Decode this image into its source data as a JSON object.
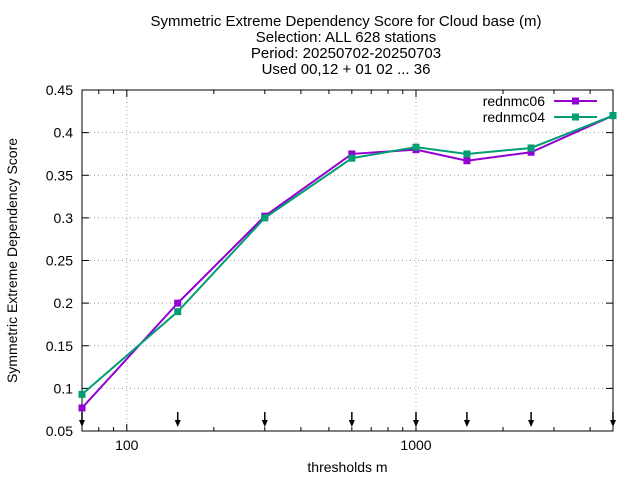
{
  "chart_data": {
    "type": "line",
    "title_lines": [
      "Symmetric Extreme Dependency Score  for Cloud base (m)",
      "Selection: ALL    628 stations",
      "Period: 20250702-20250703",
      "Used 00,12 + 01 02 ... 36"
    ],
    "xlabel": "thresholds m",
    "ylabel": "Symmetric Extreme Dependency Score",
    "x_scale": "log",
    "xlim": [
      70,
      4800
    ],
    "ylim": [
      0.05,
      0.45
    ],
    "x_ticks": [
      100,
      1000
    ],
    "x_tick_labels": [
      "100",
      "1000"
    ],
    "y_ticks": [
      0.05,
      0.1,
      0.15,
      0.2,
      0.25,
      0.3,
      0.35,
      0.4,
      0.45
    ],
    "y_tick_labels": [
      "0.05",
      "0.1",
      "0.15",
      "0.2",
      "0.25",
      "0.3",
      "0.35",
      "0.4",
      "0.45"
    ],
    "grid": true,
    "legend_position": "top-right",
    "threshold_markers": [
      70,
      150,
      300,
      600,
      1000,
      1500,
      2500,
      4800
    ],
    "series": [
      {
        "name": "rednmc06",
        "color": "#9400d3",
        "x": [
          70,
          150,
          300,
          600,
          1000,
          1500,
          2500,
          4800
        ],
        "y": [
          0.077,
          0.2,
          0.302,
          0.375,
          0.38,
          0.367,
          0.377,
          0.42
        ]
      },
      {
        "name": "rednmc04",
        "color": "#009e73",
        "x": [
          70,
          150,
          300,
          600,
          1000,
          1500,
          2500,
          4800
        ],
        "y": [
          0.093,
          0.19,
          0.3,
          0.37,
          0.383,
          0.375,
          0.382,
          0.42
        ]
      }
    ]
  }
}
